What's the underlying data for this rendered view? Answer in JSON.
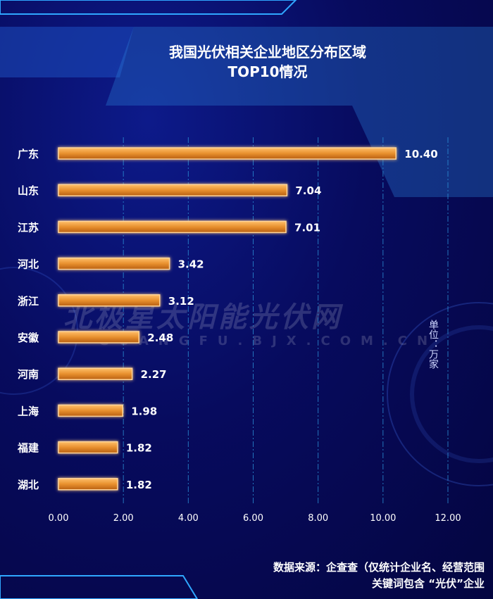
{
  "title_line1": "我国光伏相关企业地区分布区域",
  "title_line2": "TOP10情况",
  "unit_label": "单位：万家",
  "watermark": "北极星太阳能光伏网",
  "watermark_sub": "GUANGFU.BJX.COM.CN",
  "source_line1": "数据来源：企查查（仅统计企业名、经营范围",
  "source_line2": "关键词包含 “光伏”企业",
  "colors": {
    "background": "#070b5e",
    "bar_fill": "#e8902e",
    "bar_border": "#ffd59a",
    "grid": "#2a8fd6",
    "text": "#ffffff"
  },
  "chart_data": {
    "type": "bar",
    "orientation": "horizontal",
    "categories": [
      "广东",
      "山东",
      "江苏",
      "河北",
      "浙江",
      "安徽",
      "河南",
      "上海",
      "福建",
      "湖北"
    ],
    "values": [
      10.4,
      7.04,
      7.01,
      3.42,
      3.12,
      2.48,
      2.27,
      1.98,
      1.82,
      1.82
    ],
    "value_labels": [
      "10.40",
      "7.04",
      "7.01",
      "3.42",
      "3.12",
      "2.48",
      "2.27",
      "1.98",
      "1.82",
      "1.82"
    ],
    "xlim": [
      0,
      12
    ],
    "x_ticks": [
      "0.00",
      "2.00",
      "4.00",
      "6.00",
      "8.00",
      "10.00",
      "12.00"
    ],
    "grid": true
  }
}
